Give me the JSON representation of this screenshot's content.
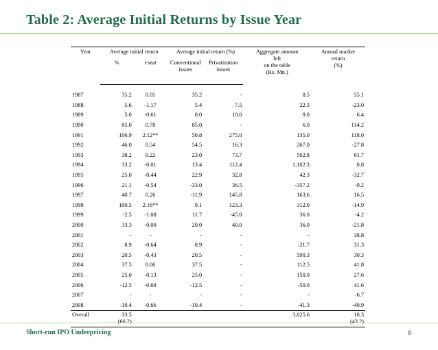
{
  "title": "Table 2: Average Initial Returns by Issue Year",
  "footer": "Short-run IPO Underpricing",
  "page_number": "8",
  "table": {
    "header": {
      "year": "Year",
      "avg_initial_return": "Average initial return",
      "avg_initial_return_pct": "Average initial return (%)",
      "aggregate_line1": "Aggregate amount",
      "aggregate_line2": "left",
      "aggregate_line3": "on the table",
      "aggregate_line4": "(Rs. Mn.)",
      "annual_line1": "Annual market",
      "annual_line2": "return",
      "annual_line3": "(%)",
      "pct": "%",
      "tstat": "t-stat",
      "conventional_line1": "Conventional",
      "conventional_line2": "issues",
      "privatization_line1": "Privatization",
      "privatization_line2": "issues"
    },
    "rows": [
      [
        "1987",
        "35.2",
        "0.05",
        "35.2",
        "-",
        "8.5",
        "55.1"
      ],
      [
        "1988",
        "5.6",
        "-1.17",
        "5.4",
        "7.5",
        "22.3",
        "-23.0"
      ],
      [
        "1989",
        "5.0",
        "-0.61",
        "0.0",
        "10.0",
        "9.0",
        "6.4"
      ],
      [
        "1990",
        "85.0",
        "0.78",
        "85.0",
        "-",
        "6.0",
        "114.2"
      ],
      [
        "1991",
        "106.9",
        "2.12**",
        "50.8",
        "275.0",
        "135.0",
        "118.0"
      ],
      [
        "1992",
        "46.0",
        "0.54",
        "54.5",
        "16.3",
        "267.0",
        "-27.8"
      ],
      [
        "1993",
        "38.2",
        "0.22",
        "23.0",
        "73.7",
        "502.8",
        "61.7"
      ],
      [
        "1994",
        "33.2",
        "-0.01",
        "13.4",
        "112.4",
        "1,102.3",
        "0.8"
      ],
      [
        "1995",
        "25.0",
        "-0.44",
        "22.9",
        "32.8",
        "42.3",
        "-32.7"
      ],
      [
        "1996",
        "21.1",
        "-0.54",
        "-33.0",
        "36.5",
        "-357.2",
        "-9.2"
      ],
      [
        "1997",
        "40.7",
        "0.26",
        "-11.9",
        "145.8",
        "163.6",
        "16.5"
      ],
      [
        "1998",
        "100.5",
        "2.16**",
        "9.1",
        "123.3",
        "312.0",
        "-14.9"
      ],
      [
        "1999",
        "-2.5",
        "-1.08",
        "11.7",
        "-45.0",
        "36.0",
        "-4.2"
      ],
      [
        "2000",
        "33.3",
        "-0.00",
        "20.0",
        "40.0",
        "36.0",
        "-21.8"
      ],
      [
        "2001",
        "-",
        "-",
        "-",
        "-",
        "-",
        "38.8"
      ],
      [
        "2002",
        "8.9",
        "-0.64",
        "8.9",
        "-",
        "-21.7",
        "31.3"
      ],
      [
        "2003",
        "20.5",
        "-0.43",
        "20.5",
        "-",
        "590.3",
        "30.3"
      ],
      [
        "2004",
        "37.5",
        "0.06",
        "37.5",
        "-",
        "112.5",
        "41.8"
      ],
      [
        "2005",
        "25.0",
        "-0.13",
        "25.0",
        "-",
        "150.0",
        "27.6"
      ],
      [
        "2006",
        "-12.5",
        "-0.69",
        "-12.5",
        "-",
        "-50.0",
        "41.6"
      ],
      [
        "2007",
        "-",
        "-",
        "-",
        "-",
        "-",
        "-6.7"
      ],
      [
        "2008",
        "-10.4",
        "-0.66",
        "-10.4",
        "-",
        "-41.3",
        "-40.9"
      ]
    ],
    "overall": {
      "label": "Overall",
      "pct": "33.5",
      "pct_sd": "(66.2)",
      "aggregate": "3,025.6",
      "annual": "18.3",
      "annual_sd": "(43.2)"
    }
  }
}
